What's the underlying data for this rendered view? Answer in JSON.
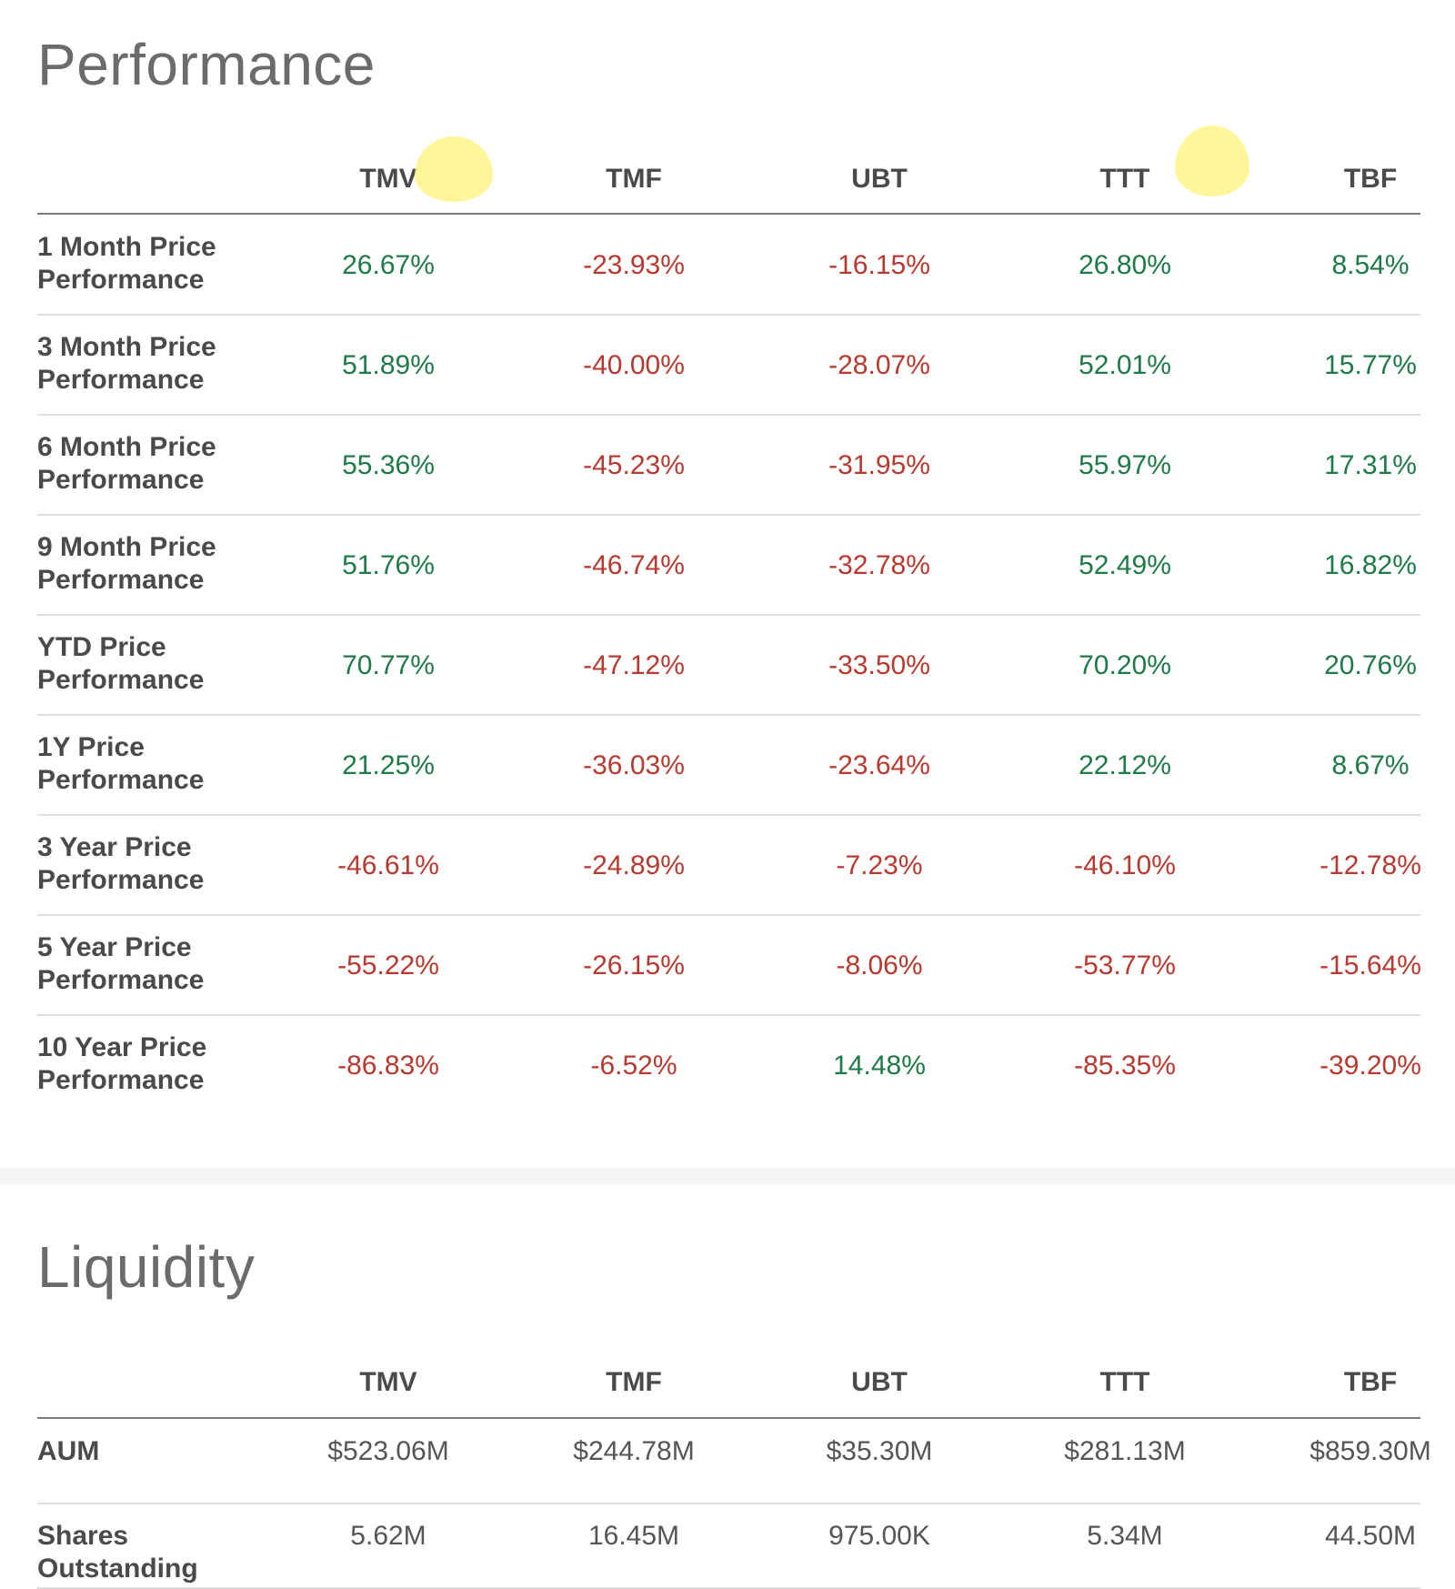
{
  "performance": {
    "title": "Performance",
    "columns": [
      "TMV",
      "TMF",
      "UBT",
      "TTT",
      "TBF"
    ],
    "rows": [
      {
        "label": "1 Month Price Performance",
        "values": [
          "26.67%",
          "-23.93%",
          "-16.15%",
          "26.80%",
          "8.54%"
        ]
      },
      {
        "label": "3 Month Price Performance",
        "values": [
          "51.89%",
          "-40.00%",
          "-28.07%",
          "52.01%",
          "15.77%"
        ]
      },
      {
        "label": "6 Month Price Performance",
        "values": [
          "55.36%",
          "-45.23%",
          "-31.95%",
          "55.97%",
          "17.31%"
        ]
      },
      {
        "label": "9 Month Price Performance",
        "values": [
          "51.76%",
          "-46.74%",
          "-32.78%",
          "52.49%",
          "16.82%"
        ]
      },
      {
        "label": "YTD Price Performance",
        "values": [
          "70.77%",
          "-47.12%",
          "-33.50%",
          "70.20%",
          "20.76%"
        ]
      },
      {
        "label": "1Y Price Performance",
        "values": [
          "21.25%",
          "-36.03%",
          "-23.64%",
          "22.12%",
          "8.67%"
        ]
      },
      {
        "label": "3 Year Price Performance",
        "values": [
          "-46.61%",
          "-24.89%",
          "-7.23%",
          "-46.10%",
          "-12.78%"
        ]
      },
      {
        "label": "5 Year Price Performance",
        "values": [
          "-55.22%",
          "-26.15%",
          "-8.06%",
          "-53.77%",
          "-15.64%"
        ]
      },
      {
        "label": "10 Year Price Performance",
        "values": [
          "-86.83%",
          "-6.52%",
          "14.48%",
          "-85.35%",
          "-39.20%"
        ]
      }
    ]
  },
  "liquidity": {
    "title": "Liquidity",
    "columns": [
      "TMV",
      "TMF",
      "UBT",
      "TTT",
      "TBF"
    ],
    "rows": [
      {
        "label": "AUM",
        "values": [
          "$523.06M",
          "$244.78M",
          "$35.30M",
          "$281.13M",
          "$859.30M"
        ]
      },
      {
        "label": "Shares Outstanding",
        "values": [
          "5.62M",
          "16.45M",
          "975.00K",
          "5.34M",
          "44.50M"
        ]
      }
    ]
  },
  "colors": {
    "positive": "#1e7a46",
    "negative": "#b8392f",
    "band": "#f3f4f6",
    "highlight": "#fff27a"
  }
}
